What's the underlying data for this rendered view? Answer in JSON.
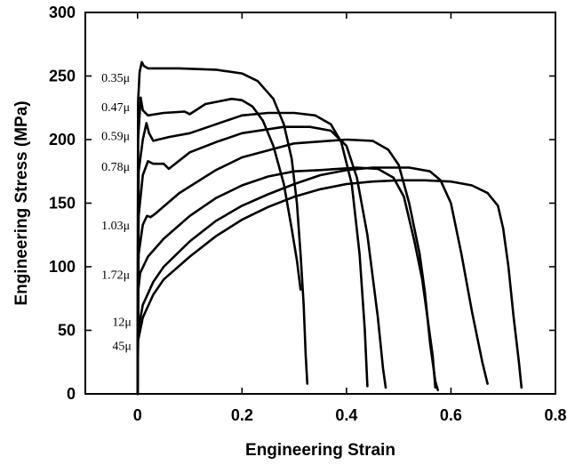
{
  "chart_data": {
    "type": "line",
    "title": "",
    "xlabel": "Engineering Strain",
    "ylabel": "Engineering Stress (MPa)",
    "xlim": [
      -0.1,
      0.8
    ],
    "ylim": [
      0,
      300
    ],
    "xticks": [
      "0",
      "0.2",
      "0.4",
      "0.6",
      "0.8"
    ],
    "yticks": [
      "0",
      "50",
      "100",
      "150",
      "200",
      "250",
      "300"
    ],
    "grid": false,
    "legend": "none",
    "series": [
      {
        "name": "0.35μ",
        "points": [
          [
            0,
            0
          ],
          [
            0.001,
            230
          ],
          [
            0.004,
            253
          ],
          [
            0.008,
            261
          ],
          [
            0.012,
            258
          ],
          [
            0.02,
            256
          ],
          [
            0.08,
            256
          ],
          [
            0.15,
            255
          ],
          [
            0.2,
            252
          ],
          [
            0.23,
            246
          ],
          [
            0.26,
            232
          ],
          [
            0.28,
            212
          ],
          [
            0.295,
            185
          ],
          [
            0.305,
            150
          ],
          [
            0.312,
            110
          ],
          [
            0.318,
            70
          ],
          [
            0.322,
            30
          ],
          [
            0.325,
            8
          ]
        ]
      },
      {
        "name": "0.47μ",
        "points": [
          [
            0,
            0
          ],
          [
            0.001,
            200
          ],
          [
            0.006,
            233
          ],
          [
            0.01,
            223
          ],
          [
            0.02,
            219
          ],
          [
            0.05,
            221
          ],
          [
            0.09,
            222
          ],
          [
            0.1,
            220
          ],
          [
            0.13,
            228
          ],
          [
            0.18,
            232
          ],
          [
            0.2,
            231
          ],
          [
            0.22,
            226
          ],
          [
            0.24,
            215
          ],
          [
            0.26,
            195
          ],
          [
            0.28,
            165
          ],
          [
            0.295,
            130
          ],
          [
            0.305,
            105
          ],
          [
            0.312,
            82
          ]
        ]
      },
      {
        "name": "0.59μ",
        "points": [
          [
            0,
            0
          ],
          [
            0.002,
            175
          ],
          [
            0.01,
            200
          ],
          [
            0.017,
            213
          ],
          [
            0.022,
            205
          ],
          [
            0.03,
            199
          ],
          [
            0.06,
            202
          ],
          [
            0.1,
            205
          ],
          [
            0.15,
            212
          ],
          [
            0.2,
            219
          ],
          [
            0.25,
            221
          ],
          [
            0.3,
            221
          ],
          [
            0.34,
            219
          ],
          [
            0.37,
            212
          ],
          [
            0.39,
            198
          ],
          [
            0.41,
            165
          ],
          [
            0.425,
            110
          ],
          [
            0.435,
            50
          ],
          [
            0.44,
            6
          ]
        ]
      },
      {
        "name": "0.78μ",
        "points": [
          [
            0,
            0
          ],
          [
            0.002,
            140
          ],
          [
            0.01,
            172
          ],
          [
            0.02,
            183
          ],
          [
            0.03,
            181
          ],
          [
            0.05,
            181
          ],
          [
            0.06,
            177
          ],
          [
            0.1,
            190
          ],
          [
            0.15,
            198
          ],
          [
            0.2,
            205
          ],
          [
            0.28,
            210
          ],
          [
            0.33,
            210
          ],
          [
            0.37,
            207
          ],
          [
            0.4,
            195
          ],
          [
            0.42,
            170
          ],
          [
            0.44,
            125
          ],
          [
            0.46,
            60
          ],
          [
            0.47,
            20
          ],
          [
            0.475,
            5
          ]
        ]
      },
      {
        "name": "1.03μ",
        "points": [
          [
            0,
            0
          ],
          [
            0.002,
            110
          ],
          [
            0.01,
            133
          ],
          [
            0.018,
            140
          ],
          [
            0.025,
            139
          ],
          [
            0.035,
            142
          ],
          [
            0.08,
            158
          ],
          [
            0.15,
            176
          ],
          [
            0.2,
            186
          ],
          [
            0.3,
            197
          ],
          [
            0.4,
            200
          ],
          [
            0.45,
            199
          ],
          [
            0.48,
            192
          ],
          [
            0.5,
            180
          ],
          [
            0.52,
            150
          ],
          [
            0.54,
            110
          ],
          [
            0.55,
            80
          ],
          [
            0.56,
            40
          ],
          [
            0.57,
            10
          ],
          [
            0.575,
            3
          ]
        ]
      },
      {
        "name": "1.72μ",
        "points": [
          [
            0,
            0
          ],
          [
            0.001,
            80
          ],
          [
            0.005,
            95
          ],
          [
            0.02,
            108
          ],
          [
            0.05,
            122
          ],
          [
            0.1,
            140
          ],
          [
            0.15,
            154
          ],
          [
            0.2,
            164
          ],
          [
            0.25,
            171
          ],
          [
            0.3,
            175
          ],
          [
            0.35,
            176
          ],
          [
            0.42,
            178
          ],
          [
            0.46,
            177
          ],
          [
            0.49,
            170
          ],
          [
            0.51,
            155
          ],
          [
            0.53,
            120
          ],
          [
            0.545,
            90
          ],
          [
            0.555,
            60
          ],
          [
            0.565,
            30
          ],
          [
            0.57,
            5
          ]
        ]
      },
      {
        "name": "12μ",
        "points": [
          [
            0,
            0
          ],
          [
            0.001,
            50
          ],
          [
            0.01,
            70
          ],
          [
            0.03,
            88
          ],
          [
            0.05,
            100
          ],
          [
            0.1,
            120
          ],
          [
            0.15,
            136
          ],
          [
            0.2,
            148
          ],
          [
            0.25,
            157
          ],
          [
            0.3,
            165
          ],
          [
            0.35,
            172
          ],
          [
            0.4,
            176
          ],
          [
            0.45,
            178
          ],
          [
            0.52,
            178
          ],
          [
            0.56,
            175
          ],
          [
            0.58,
            168
          ],
          [
            0.6,
            150
          ],
          [
            0.62,
            110
          ],
          [
            0.64,
            65
          ],
          [
            0.66,
            25
          ],
          [
            0.67,
            8
          ]
        ]
      },
      {
        "name": "45μ",
        "points": [
          [
            0,
            0
          ],
          [
            0.001,
            42
          ],
          [
            0.01,
            60
          ],
          [
            0.03,
            78
          ],
          [
            0.05,
            90
          ],
          [
            0.1,
            108
          ],
          [
            0.15,
            124
          ],
          [
            0.2,
            137
          ],
          [
            0.25,
            147
          ],
          [
            0.3,
            155
          ],
          [
            0.35,
            161
          ],
          [
            0.4,
            165
          ],
          [
            0.45,
            167
          ],
          [
            0.5,
            168
          ],
          [
            0.55,
            168
          ],
          [
            0.6,
            167
          ],
          [
            0.64,
            164
          ],
          [
            0.67,
            158
          ],
          [
            0.69,
            148
          ],
          [
            0.7,
            130
          ],
          [
            0.71,
            100
          ],
          [
            0.72,
            60
          ],
          [
            0.73,
            25
          ],
          [
            0.735,
            5
          ]
        ]
      }
    ],
    "annotations": [
      {
        "text": "0.35μ",
        "x": -0.042,
        "y": 249
      },
      {
        "text": "0.47μ",
        "x": -0.042,
        "y": 226
      },
      {
        "text": "0.59μ",
        "x": -0.042,
        "y": 203
      },
      {
        "text": "0.78μ",
        "x": -0.042,
        "y": 179
      },
      {
        "text": "1.03μ",
        "x": -0.042,
        "y": 133
      },
      {
        "text": "1.72μ",
        "x": -0.042,
        "y": 94
      },
      {
        "text": "12μ",
        "x": -0.03,
        "y": 57
      },
      {
        "text": "45μ",
        "x": -0.03,
        "y": 38
      }
    ]
  }
}
